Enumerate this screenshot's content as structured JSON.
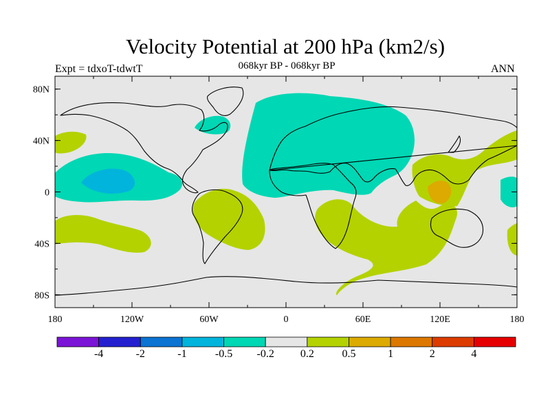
{
  "title": "Velocity Potential at 200 hPa (km2/s)",
  "subtitle": "068kyr BP - 068kyr BP",
  "left_label": "Expt = tdxoT-tdwtT",
  "right_label": "ANN",
  "map": {
    "projection": "cylindrical-equidistant",
    "lon_range": [
      -180,
      180
    ],
    "lat_range": [
      -90,
      90
    ],
    "lon_ticks": [
      {
        "value": -180,
        "label": "180"
      },
      {
        "value": -120,
        "label": "120W"
      },
      {
        "value": -60,
        "label": "60W"
      },
      {
        "value": 0,
        "label": "0"
      },
      {
        "value": 60,
        "label": "60E"
      },
      {
        "value": 120,
        "label": "120E"
      },
      {
        "value": 180,
        "label": "180"
      }
    ],
    "lat_ticks": [
      {
        "value": 80,
        "label": "80N"
      },
      {
        "value": 40,
        "label": "40N"
      },
      {
        "value": 0,
        "label": "0"
      },
      {
        "value": -40,
        "label": "40S"
      },
      {
        "value": -80,
        "label": "80S"
      }
    ],
    "background_color": "#e6e6e6",
    "coastlines": "black"
  },
  "colorbar": {
    "colors": [
      "#7b14d6",
      "#2420d0",
      "#0b73d2",
      "#00b4dc",
      "#00d7b4",
      "#e6e6e6",
      "#b4d200",
      "#dcaa00",
      "#dc7800",
      "#dc3c00",
      "#e60000"
    ],
    "labels": [
      "-4",
      "-2",
      "-1",
      "-0.5",
      "-0.2",
      "0.2",
      "0.5",
      "1",
      "2",
      "4"
    ]
  }
}
